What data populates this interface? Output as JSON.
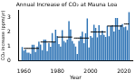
{
  "chart_data": {
    "type": "bar",
    "title": "Annual Increase of CO₂ at Mauna Loa",
    "x_label": "Year",
    "y_label": "CO₂ increase (ppm/yr)",
    "x": [
      1959,
      1960,
      1961,
      1962,
      1963,
      1964,
      1965,
      1966,
      1967,
      1968,
      1969,
      1970,
      1971,
      1972,
      1973,
      1974,
      1975,
      1976,
      1977,
      1978,
      1979,
      1980,
      1981,
      1982,
      1983,
      1984,
      1985,
      1986,
      1987,
      1988,
      1989,
      1990,
      1991,
      1992,
      1993,
      1994,
      1995,
      1996,
      1997,
      1998,
      1999,
      2000,
      2001,
      2002,
      2003,
      2004,
      2005,
      2006,
      2007,
      2008,
      2009,
      2010,
      2011,
      2012,
      2013,
      2014,
      2015,
      2016,
      2017,
      2018,
      2019,
      2020,
      2021,
      2022,
      2023
    ],
    "series": [
      {
        "type": "bar",
        "color": "#2f74b5",
        "values": [
          0.96,
          0.71,
          0.78,
          0.56,
          0.57,
          0.49,
          1.1,
          1.1,
          0.61,
          0.99,
          1.32,
          1.13,
          0.73,
          1.47,
          1.46,
          0.68,
          1.23,
          0.97,
          1.92,
          1.29,
          2.14,
          1.72,
          1.15,
          0.99,
          2.12,
          1.37,
          1.26,
          1.47,
          2.74,
          2.17,
          1.37,
          1.19,
          0.99,
          0.47,
          1.37,
          1.69,
          2.0,
          1.21,
          1.9,
          2.93,
          0.92,
          1.71,
          1.6,
          2.49,
          2.27,
          1.62,
          2.45,
          1.77,
          2.09,
          1.79,
          1.65,
          2.41,
          1.7,
          2.4,
          2.45,
          2.03,
          2.95,
          2.96,
          2.15,
          2.45,
          2.53,
          2.32,
          2.36,
          2.11,
          3.36
        ]
      },
      {
        "type": "line",
        "color": "#000000",
        "values": [
          null,
          0.86,
          0.86,
          0.86,
          0.86,
          0.86,
          0.86,
          0.86,
          0.86,
          0.86,
          0.86,
          1.3,
          1.3,
          1.3,
          1.3,
          1.3,
          1.3,
          1.3,
          1.3,
          1.3,
          1.3,
          1.64,
          1.64,
          1.64,
          1.64,
          1.64,
          1.64,
          1.64,
          1.64,
          1.64,
          1.64,
          1.57,
          1.57,
          1.57,
          1.57,
          1.57,
          1.57,
          1.57,
          1.57,
          1.57,
          1.57,
          1.99,
          1.99,
          1.99,
          1.99,
          1.99,
          1.99,
          1.99,
          1.99,
          1.99,
          1.99,
          2.4,
          2.4,
          2.4,
          2.4,
          2.4,
          2.4,
          2.4,
          2.4,
          2.4,
          2.4,
          2.54,
          2.54,
          2.54,
          2.54
        ]
      }
    ],
    "xlim": [
      1957,
      2025
    ],
    "xticks": [
      1960,
      1980,
      2000,
      2020
    ],
    "ylim": [
      0,
      3.5
    ],
    "yticks": [
      0,
      1,
      2,
      3
    ],
    "grid": false
  }
}
